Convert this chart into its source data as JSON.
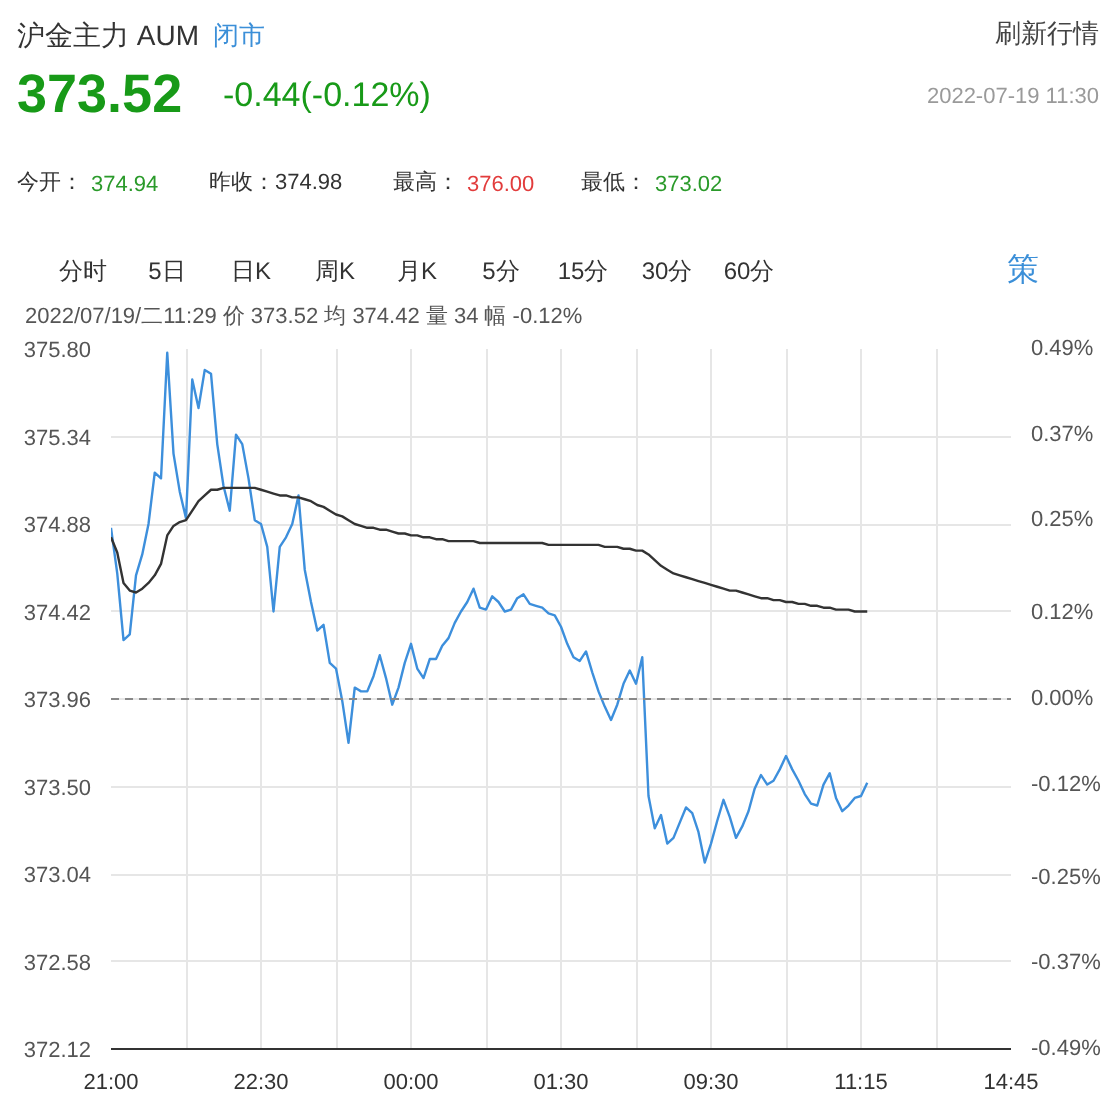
{
  "chart_data": {
    "type": "line",
    "title": "沪金主力 AUM",
    "annotations": [
      "闭市",
      "373.52",
      "-0.44(-0.12%)",
      "2022-07-19 11:30",
      "刷新行情",
      "今开：",
      "374.94",
      "昨收：374.98",
      "最高：",
      "376.00",
      "最低：",
      "373.02",
      "分时",
      "5日",
      "日K",
      "周K",
      "月K",
      "5分",
      "15分",
      "30分",
      "60分",
      "策",
      "2022/07/19/二11:29 价 373.52 均 374.42 量 34 幅 -0.12%"
    ],
    "categories": [
      "21:00",
      null,
      null,
      null,
      null,
      null,
      null,
      null,
      null,
      null,
      null,
      null,
      null,
      null,
      null,
      null,
      null,
      null,
      null,
      null,
      null,
      null,
      null,
      null,
      "22:30",
      null,
      null,
      null,
      null,
      null,
      null,
      null,
      null,
      null,
      null,
      null,
      null,
      null,
      null,
      null,
      null,
      null,
      null,
      null,
      null,
      null,
      null,
      null,
      "00:00",
      null,
      null,
      null,
      null,
      null,
      null,
      null,
      null,
      null,
      null,
      null,
      null,
      null,
      null,
      null,
      null,
      null,
      null,
      null,
      null,
      null,
      null,
      null,
      "01:30",
      null,
      null,
      null,
      null,
      null,
      null,
      null,
      null,
      null,
      null,
      null,
      null,
      null,
      null,
      null,
      null,
      null,
      null,
      null,
      null,
      null,
      null,
      null,
      "09:30",
      null,
      null,
      null,
      null,
      null,
      null,
      null,
      null,
      null,
      null,
      null,
      null,
      null,
      null,
      null,
      null,
      null,
      null,
      null,
      null,
      null,
      null,
      null,
      "11:15",
      null,
      null,
      null,
      null,
      null,
      null,
      null,
      null,
      null,
      null,
      null,
      null,
      null,
      null,
      null,
      null,
      null,
      null,
      null,
      null,
      null,
      null,
      null,
      "14:45"
    ],
    "ylim": [
      372.12,
      375.8
    ],
    "yticks": [
      {
        "value": 372.12,
        "label": "372.12"
      },
      {
        "value": 372.58,
        "label": "372.58"
      },
      {
        "value": 373.04,
        "label": "373.04"
      },
      {
        "value": 373.5,
        "label": "373.50"
      },
      {
        "value": 373.96,
        "label": "373.96"
      },
      {
        "value": 374.42,
        "label": "374.42"
      },
      {
        "value": 374.88,
        "label": "374.88"
      },
      {
        "value": 375.34,
        "label": "375.34"
      },
      {
        "value": 375.8,
        "label": "375.80"
      }
    ],
    "y2lim": [
      -0.49,
      0.49
    ],
    "y2ticks": [
      {
        "value": -0.49,
        "label": "-0.49%"
      },
      {
        "value": -0.37,
        "label": "-0.37%"
      },
      {
        "value": -0.25,
        "label": "-0.25%"
      },
      {
        "value": -0.12,
        "label": "-0.12%"
      },
      {
        "value": 0,
        "label": "0.00%"
      },
      {
        "value": 0.12,
        "label": "0.12%"
      },
      {
        "value": 0.25,
        "label": "0.25%"
      },
      {
        "value": 0.37,
        "label": "0.37%"
      },
      {
        "value": 0.49,
        "label": "0.49%"
      }
    ],
    "ref_lines": [
      {
        "axis": "y",
        "value": 373.96,
        "color": "#888888",
        "line_style": "dashed"
      }
    ],
    "grid": true,
    "series": [
      {
        "color": "#3d8fdc",
        "values": [
          374.86,
          374.62,
          374.27,
          374.3,
          374.61,
          374.72,
          374.88,
          375.15,
          375.12,
          375.78,
          375.25,
          375.05,
          374.91,
          375.64,
          375.49,
          375.69,
          375.67,
          375.3,
          375.08,
          374.95,
          375.35,
          375.3,
          375.12,
          374.9,
          374.88,
          374.76,
          374.42,
          374.76,
          374.81,
          374.88,
          375.03,
          374.64,
          374.47,
          374.32,
          374.35,
          374.15,
          374.12,
          373.95,
          373.73,
          374.02,
          374.0,
          374.0,
          374.08,
          374.19,
          374.07,
          373.93,
          374.02,
          374.15,
          374.25,
          374.12,
          374.07,
          374.17,
          374.17,
          374.24,
          374.28,
          374.36,
          374.42,
          374.47,
          374.54,
          374.44,
          374.43,
          374.5,
          374.47,
          374.42,
          374.43,
          374.49,
          374.51,
          374.46,
          374.45,
          374.44,
          374.41,
          374.4,
          374.34,
          374.25,
          374.18,
          374.16,
          374.21,
          374.1,
          374.0,
          373.92,
          373.85,
          373.93,
          374.04,
          374.11,
          374.04,
          374.18,
          373.45,
          373.28,
          373.35,
          373.2,
          373.23,
          373.31,
          373.39,
          373.36,
          373.26,
          373.1,
          373.2,
          373.32,
          373.43,
          373.34,
          373.23,
          373.29,
          373.37,
          373.49,
          373.56,
          373.51,
          373.53,
          373.59,
          373.66,
          373.59,
          373.53,
          373.46,
          373.41,
          373.4,
          373.51,
          373.57,
          373.44,
          373.37,
          373.4,
          373.44,
          373.45,
          373.52,
          null,
          null,
          null,
          null,
          null,
          null,
          null,
          null,
          null,
          null,
          null,
          null,
          null,
          null,
          null,
          null,
          null,
          null,
          null,
          null,
          null,
          null,
          null
        ]
      },
      {
        "color": "#333333",
        "values": [
          374.81,
          374.73,
          374.57,
          374.53,
          374.52,
          374.54,
          374.57,
          374.61,
          374.67,
          374.82,
          374.87,
          374.89,
          374.9,
          374.95,
          375.0,
          375.03,
          375.06,
          375.06,
          375.07,
          375.07,
          375.07,
          375.07,
          375.07,
          375.07,
          375.06,
          375.05,
          375.04,
          375.03,
          375.03,
          375.02,
          375.02,
          375.01,
          375.0,
          374.98,
          374.97,
          374.95,
          374.93,
          374.92,
          374.9,
          374.88,
          374.87,
          374.86,
          374.86,
          374.85,
          374.85,
          374.84,
          374.83,
          374.83,
          374.82,
          374.82,
          374.81,
          374.81,
          374.8,
          374.8,
          374.79,
          374.79,
          374.79,
          374.79,
          374.79,
          374.78,
          374.78,
          374.78,
          374.78,
          374.78,
          374.78,
          374.78,
          374.78,
          374.78,
          374.78,
          374.78,
          374.77,
          374.77,
          374.77,
          374.77,
          374.77,
          374.77,
          374.77,
          374.77,
          374.77,
          374.76,
          374.76,
          374.76,
          374.75,
          374.75,
          374.74,
          374.74,
          374.72,
          374.69,
          374.66,
          374.64,
          374.62,
          374.61,
          374.6,
          374.59,
          374.58,
          374.57,
          374.56,
          374.55,
          374.54,
          374.53,
          374.53,
          374.52,
          374.51,
          374.5,
          374.49,
          374.49,
          374.48,
          374.48,
          374.47,
          374.47,
          374.46,
          374.46,
          374.45,
          374.45,
          374.44,
          374.44,
          374.43,
          374.43,
          374.43,
          374.42,
          374.42,
          374.42,
          null,
          null,
          null,
          null,
          null,
          null,
          null,
          null,
          null,
          null,
          null,
          null,
          null,
          null,
          null,
          null,
          null,
          null,
          null,
          null,
          null,
          null,
          null
        ]
      }
    ]
  }
}
